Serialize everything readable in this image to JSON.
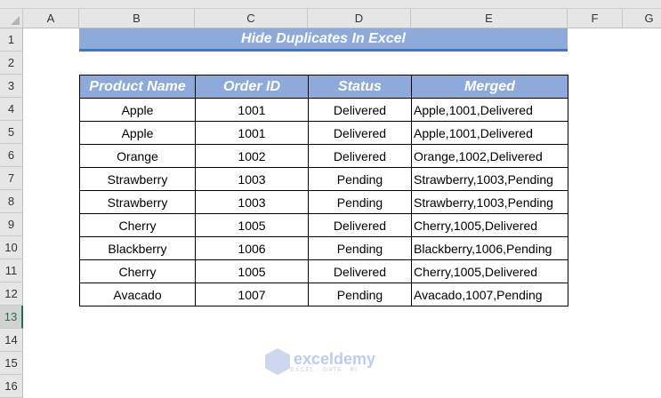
{
  "columns": [
    "A",
    "B",
    "C",
    "D",
    "E",
    "F",
    "G"
  ],
  "rows": [
    "1",
    "2",
    "3",
    "4",
    "5",
    "6",
    "7",
    "8",
    "9",
    "10",
    "11",
    "12",
    "13",
    "14",
    "15",
    "16"
  ],
  "selected_row": "13",
  "title": "Hide Duplicates In Excel",
  "table": {
    "headers": [
      "Product Name",
      "Order ID",
      "Status",
      "Merged"
    ],
    "rows": [
      [
        "Apple",
        "1001",
        "Delivered",
        "Apple,1001,Delivered"
      ],
      [
        "Apple",
        "1001",
        "Delivered",
        "Apple,1001,Delivered"
      ],
      [
        "Orange",
        "1002",
        "Delivered",
        "Orange,1002,Delivered"
      ],
      [
        "Strawberry",
        "1003",
        "Pending",
        "Strawberry,1003,Pending"
      ],
      [
        "Strawberry",
        "1003",
        "Pending",
        "Strawberry,1003,Pending"
      ],
      [
        "Cherry",
        "1005",
        "Delivered",
        "Cherry,1005,Delivered"
      ],
      [
        "Blackberry",
        "1006",
        "Pending",
        "Blackberry,1006,Pending"
      ],
      [
        "Cherry",
        "1005",
        "Delivered",
        "Cherry,1005,Delivered"
      ],
      [
        "Avacado",
        "1007",
        "Pending",
        "Avacado,1007,Pending"
      ]
    ]
  },
  "watermark": {
    "name": "exceldemy",
    "tagline": "EXCEL · DATA · BI"
  },
  "colors": {
    "header_fill": "#8eaadb",
    "title_border": "#4472c4"
  }
}
